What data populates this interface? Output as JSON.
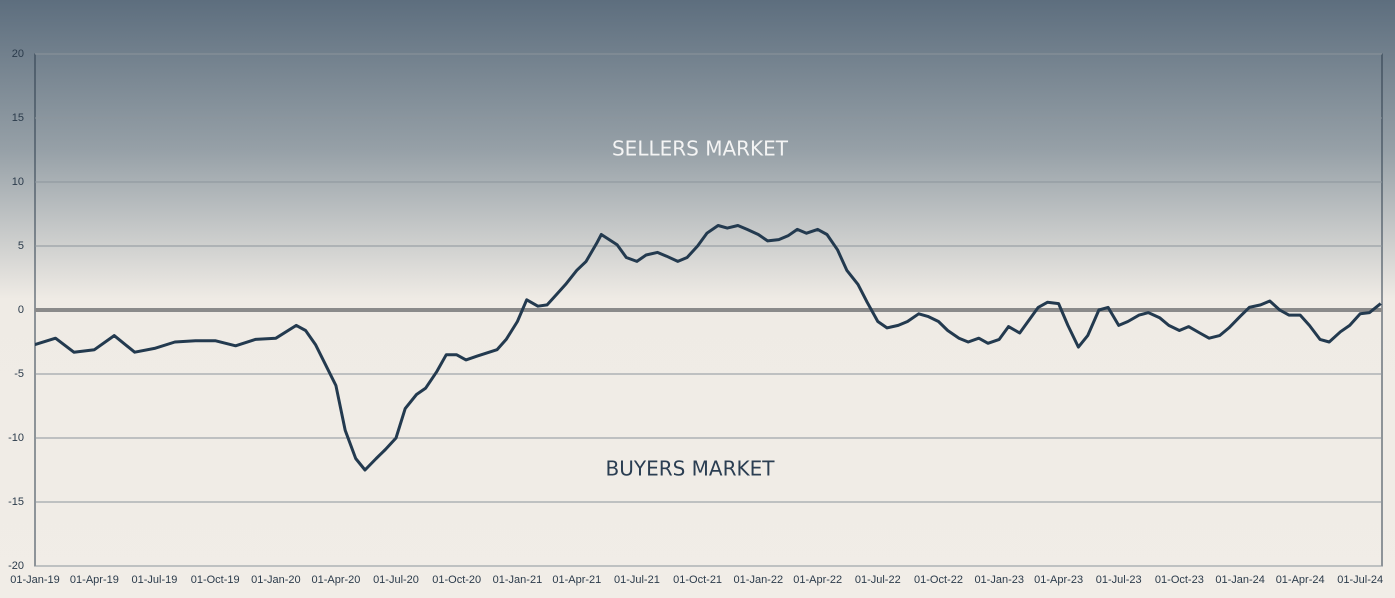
{
  "chart_data": {
    "type": "line",
    "annotations": [
      "SELLERS MARKET",
      "BUYERS MARKET"
    ],
    "x": [
      "2019-01-01",
      "2019-02-01",
      "2019-03-01",
      "2019-04-01",
      "2019-05-01",
      "2019-06-01",
      "2019-07-01",
      "2019-08-01",
      "2019-09-01",
      "2019-10-01",
      "2019-11-01",
      "2019-12-01",
      "2020-01-01",
      "2020-02-01",
      "2020-02-15",
      "2020-03-01",
      "2020-04-01",
      "2020-04-15",
      "2020-05-01",
      "2020-05-15",
      "2020-06-01",
      "2020-06-15",
      "2020-07-01",
      "2020-07-15",
      "2020-08-01",
      "2020-08-15",
      "2020-09-01",
      "2020-09-15",
      "2020-10-01",
      "2020-10-15",
      "2020-11-01",
      "2020-12-01",
      "2020-12-15",
      "2021-01-01",
      "2021-01-15",
      "2021-02-01",
      "2021-02-15",
      "2021-03-01",
      "2021-03-15",
      "2021-04-01",
      "2021-04-15",
      "2021-05-01",
      "2021-05-08",
      "2021-06-01",
      "2021-06-15",
      "2021-07-01",
      "2021-07-15",
      "2021-08-01",
      "2021-08-15",
      "2021-09-01",
      "2021-09-15",
      "2021-10-01",
      "2021-10-15",
      "2021-11-01",
      "2021-11-15",
      "2021-12-01",
      "2021-12-15",
      "2022-01-01",
      "2022-01-15",
      "2022-02-01",
      "2022-02-15",
      "2022-03-01",
      "2022-03-15",
      "2022-04-01",
      "2022-04-15",
      "2022-05-01",
      "2022-05-15",
      "2022-06-01",
      "2022-06-15",
      "2022-07-01",
      "2022-07-15",
      "2022-08-01",
      "2022-08-15",
      "2022-09-01",
      "2022-09-15",
      "2022-10-01",
      "2022-10-15",
      "2022-11-01",
      "2022-11-15",
      "2022-12-01",
      "2022-12-15",
      "2023-01-01",
      "2023-01-15",
      "2023-02-01",
      "2023-02-15",
      "2023-03-01",
      "2023-03-15",
      "2023-04-01",
      "2023-04-15",
      "2023-05-01",
      "2023-05-15",
      "2023-06-01",
      "2023-06-15",
      "2023-07-01",
      "2023-07-15",
      "2023-08-01",
      "2023-08-15",
      "2023-09-01",
      "2023-09-15",
      "2023-10-01",
      "2023-10-15",
      "2023-11-01",
      "2023-11-15",
      "2023-12-01",
      "2023-12-15",
      "2024-01-01",
      "2024-01-15",
      "2024-02-01",
      "2024-02-15",
      "2024-03-01",
      "2024-03-15",
      "2024-04-01",
      "2024-04-15",
      "2024-05-01",
      "2024-05-15",
      "2024-06-01",
      "2024-06-15",
      "2024-07-01",
      "2024-07-15",
      "2024-08-01"
    ],
    "series": [
      {
        "color": "#233a4f",
        "values": [
          -2.7,
          -2.2,
          -3.3,
          -3.1,
          -2.0,
          -3.3,
          -3.0,
          -2.5,
          -2.4,
          -2.4,
          -2.8,
          -2.3,
          -2.2,
          -1.2,
          -1.6,
          -2.7,
          -5.9,
          -9.4,
          -11.6,
          -12.5,
          -11.6,
          -10.9,
          -10.0,
          -7.7,
          -6.6,
          -6.1,
          -4.8,
          -3.5,
          -3.5,
          -3.9,
          -3.6,
          -3.1,
          -2.3,
          -0.9,
          0.8,
          0.3,
          0.4,
          1.2,
          2.0,
          3.1,
          3.8,
          5.2,
          5.9,
          5.1,
          4.1,
          3.8,
          4.3,
          4.5,
          4.2,
          3.8,
          4.1,
          5.0,
          6.0,
          6.6,
          6.4,
          6.6,
          6.3,
          5.9,
          5.4,
          5.5,
          5.8,
          6.3,
          6.0,
          6.3,
          5.9,
          4.7,
          3.1,
          2.0,
          0.6,
          -0.9,
          -1.4,
          -1.2,
          -0.9,
          -0.3,
          -0.5,
          -0.9,
          -1.6,
          -2.2,
          -2.5,
          -2.2,
          -2.6,
          -2.3,
          -1.3,
          -1.8,
          -0.8,
          0.2,
          0.6,
          0.5,
          -1.2,
          -2.9,
          -2.0,
          0,
          0.2,
          -1.2,
          -0.9,
          -0.4,
          -0.2,
          -0.6,
          -1.2,
          -1.6,
          -1.3,
          -1.8,
          -2.2,
          -2.0,
          -1.4,
          -0.5,
          0.2,
          0.4,
          0.7,
          0,
          -0.4,
          -0.4,
          -1.2,
          -2.3,
          -2.5,
          -1.7,
          -1.2,
          -0.3,
          -0.2,
          0.5
        ]
      }
    ],
    "xlim": [
      "2019-01-01",
      "2024-08-03"
    ],
    "xticks": [
      {
        "value": "2019-01-01",
        "label": "01-Jan-19"
      },
      {
        "value": "2019-04-01",
        "label": "01-Apr-19"
      },
      {
        "value": "2019-07-01",
        "label": "01-Jul-19"
      },
      {
        "value": "2019-10-01",
        "label": "01-Oct-19"
      },
      {
        "value": "2020-01-01",
        "label": "01-Jan-20"
      },
      {
        "value": "2020-04-01",
        "label": "01-Apr-20"
      },
      {
        "value": "2020-07-01",
        "label": "01-Jul-20"
      },
      {
        "value": "2020-10-01",
        "label": "01-Oct-20"
      },
      {
        "value": "2021-01-01",
        "label": "01-Jan-21"
      },
      {
        "value": "2021-04-01",
        "label": "01-Apr-21"
      },
      {
        "value": "2021-07-01",
        "label": "01-Jul-21"
      },
      {
        "value": "2021-10-01",
        "label": "01-Oct-21"
      },
      {
        "value": "2022-01-01",
        "label": "01-Jan-22"
      },
      {
        "value": "2022-04-01",
        "label": "01-Apr-22"
      },
      {
        "value": "2022-07-01",
        "label": "01-Jul-22"
      },
      {
        "value": "2022-10-01",
        "label": "01-Oct-22"
      },
      {
        "value": "2023-01-01",
        "label": "01-Jan-23"
      },
      {
        "value": "2023-04-01",
        "label": "01-Apr-23"
      },
      {
        "value": "2023-07-01",
        "label": "01-Jul-23"
      },
      {
        "value": "2023-10-01",
        "label": "01-Oct-23"
      },
      {
        "value": "2024-01-01",
        "label": "01-Jan-24"
      },
      {
        "value": "2024-04-01",
        "label": "01-Apr-24"
      },
      {
        "value": "2024-07-01",
        "label": "01-Jul-24"
      }
    ],
    "ylim": [
      -20,
      20
    ],
    "yticks": [
      -20,
      -15,
      -10,
      -5,
      0,
      5,
      10,
      15,
      20
    ],
    "grid": true
  }
}
